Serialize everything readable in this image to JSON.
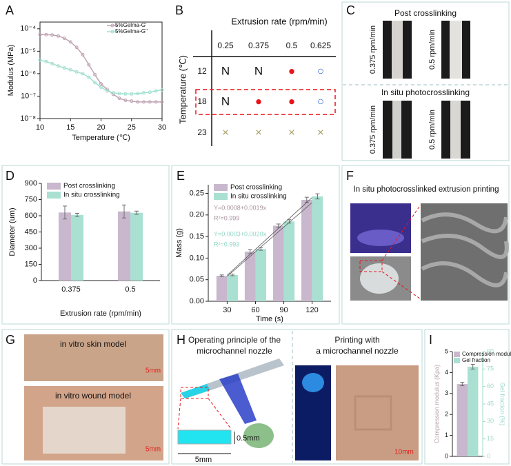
{
  "panel_labels": [
    "A",
    "B",
    "C",
    "D",
    "E",
    "F",
    "G",
    "H",
    "I"
  ],
  "chart_data": [
    {
      "type": "line",
      "log_y": true,
      "frame": true,
      "xlabel": "Temperature (℃)",
      "ylabel": "Modulus (MPa)",
      "x": [
        10,
        11,
        12,
        13,
        14,
        15,
        16,
        17,
        18,
        19,
        20,
        21,
        22,
        23,
        24,
        25,
        26,
        27,
        28,
        29,
        30
      ],
      "xlim": [
        10,
        30
      ],
      "xticks": [
        10,
        15,
        20,
        25,
        30
      ],
      "ylim": [
        1e-08,
        0.0002
      ],
      "yticks": [
        {
          "value": 1e-08,
          "label": "10⁻⁸"
        },
        {
          "value": 1e-07,
          "label": "10⁻⁷"
        },
        {
          "value": 1e-06,
          "label": "10⁻⁶"
        },
        {
          "value": 1e-05,
          "label": "10⁻⁵"
        },
        {
          "value": 0.0001,
          "label": "10⁻⁴"
        }
      ],
      "legend": "upper right",
      "series": [
        {
          "name": "5%Gelma-G'",
          "color": "#c0a3b3",
          "values": [
            5.5e-05,
            5.5e-05,
            5.3e-05,
            4.8e-05,
            3.8e-05,
            2.6e-05,
            1.5e-05,
            7e-06,
            2.5e-06,
            9e-07,
            3.5e-07,
            2e-07,
            1.2e-07,
            8e-08,
            6.5e-08,
            6e-08,
            5.5e-08,
            5.5e-08,
            5.5e-08,
            5.5e-08,
            5.5e-08
          ]
        },
        {
          "name": "5%Gelma-G''",
          "color": "#9fe0cf",
          "values": [
            4e-06,
            3.5e-06,
            2.8e-06,
            2.2e-06,
            1.8e-06,
            1.5e-06,
            1.2e-06,
            1e-06,
            7e-07,
            4e-07,
            2.5e-07,
            1.7e-07,
            1.4e-07,
            1.3e-07,
            1.25e-07,
            1.25e-07,
            1.3e-07,
            1.4e-07,
            1.5e-07,
            1.7e-07,
            1.9e-07
          ]
        }
      ]
    },
    {
      "type": "bar",
      "xlabel": "Extrusion rate (rpm/min)",
      "ylabel": "Diameter (um)",
      "categories": [
        "0.375",
        "0.5"
      ],
      "ylim": [
        0,
        900
      ],
      "yticks": [
        0,
        150,
        300,
        450,
        600,
        750,
        900
      ],
      "legend": "upper left",
      "series": [
        {
          "name": "Post crosslinking",
          "color": "#c9b8cd",
          "values": [
            630,
            640
          ],
          "errors": [
            60,
            60
          ]
        },
        {
          "name": "In situ crosslinking",
          "color": "#a9e0d2",
          "values": [
            608,
            628
          ],
          "errors": [
            15,
            15
          ]
        }
      ]
    },
    {
      "type": "bar",
      "xlabel": "Time (s)",
      "ylabel": "Mass (g)",
      "x": [
        30,
        60,
        90,
        120
      ],
      "xlim": [
        10,
        140
      ],
      "xticks": [
        30,
        60,
        90,
        120
      ],
      "ylim": [
        0,
        0.27
      ],
      "yticks": [
        {
          "value": 0,
          "label": "0.00"
        },
        0.05,
        {
          "value": 0.1,
          "label": "0.10"
        },
        0.15,
        {
          "value": 0.2,
          "label": "0.20"
        },
        0.25
      ],
      "legend": "upper left",
      "series": [
        {
          "name": "Post crosslinking",
          "color": "#c9b8cd",
          "values": [
            0.059,
            0.115,
            0.175,
            0.235
          ],
          "errors": [
            0.002,
            0.005,
            0.004,
            0.006
          ]
        },
        {
          "name": "In situ crosslinking",
          "color": "#a9e0d2",
          "values": [
            0.061,
            0.121,
            0.185,
            0.243
          ],
          "errors": [
            0.002,
            0.003,
            0.004,
            0.006
          ]
        }
      ],
      "fits": [
        {
          "intercept": 0.0008,
          "slope": 0.0019,
          "label": "Y=0.0008+0.0019x",
          "r2_label": "R²=0.999",
          "color": "#a8949f"
        },
        {
          "intercept": 0.0003,
          "slope": 0.002,
          "label": "Y=0.0003+0.0020x",
          "r2_label": "R²=0.993",
          "color": "#8fd6c3"
        }
      ]
    },
    {
      "type": "bar",
      "ylabel": "Compression modulus (Kpa)",
      "y2label": "Gel fraction (%)",
      "categories": [
        null
      ],
      "ylim": [
        0,
        5
      ],
      "yticks": [
        0,
        1,
        2,
        3,
        4,
        5
      ],
      "y2lim": [
        0,
        90
      ],
      "y2ticks": [
        0,
        15,
        30,
        45,
        60,
        75,
        90
      ],
      "legend": "upper left",
      "series": [
        {
          "name": "Compression modulus",
          "color": "#c9b8cd",
          "values": [
            3.45
          ],
          "errors": [
            0.08
          ]
        },
        {
          "name": "Gel fraction",
          "color": "#a9e0d2",
          "values": [
            77
          ],
          "errors": [
            2
          ],
          "axis": "y2"
        }
      ]
    }
  ],
  "table": {
    "title": "Extrusion rate (rpm/min)",
    "row_title": "Temperature (℃)",
    "columns": [
      "0.25",
      "0.375",
      "0.5",
      "0.625"
    ],
    "rows": [
      {
        "label": "12",
        "cells": [
          {
            "text": "N",
            "color": "#111111"
          },
          {
            "text": "N",
            "color": "#111111"
          },
          {
            "text": "●",
            "color": "#e8141b"
          },
          {
            "text": "○",
            "color": "#3a6fd8"
          }
        ]
      },
      {
        "label": "18",
        "cells": [
          {
            "text": "N",
            "color": "#111111"
          },
          {
            "text": "●",
            "color": "#e8141b"
          },
          {
            "text": "●",
            "color": "#e8141b"
          },
          {
            "text": "○",
            "color": "#3a6fd8"
          }
        ]
      },
      {
        "label": "23",
        "cells": [
          {
            "text": "×",
            "color": "#a9a36a"
          },
          {
            "text": "×",
            "color": "#a9a36a"
          },
          {
            "text": "×",
            "color": "#a9a36a"
          },
          {
            "text": "×",
            "color": "#a9a36a"
          }
        ]
      }
    ]
  },
  "panel_c": {
    "top_title": "Post crosslinking",
    "bottom_title": "In situ photocrosslinking",
    "labels": [
      "0.375 rpm/min",
      "0.5 rpm/min",
      "0.375 rpm/min",
      "0.5 rpm/min"
    ]
  },
  "panel_f": {
    "title": "In situ photocrosslinked extrusion printing"
  },
  "panel_g": {
    "top_label": "in vitro skin model",
    "top_scale": "5mm",
    "bottom_label": "in vitro wound model",
    "bottom_scale": "5mm"
  },
  "panel_h": {
    "left_title": [
      "Operating principle of the",
      "microchannel nozzle"
    ],
    "right_title": [
      "Printing with",
      "a microchannel nozzle"
    ],
    "thickness": "0.5mm",
    "width": "5mm",
    "scale": "10mm"
  }
}
